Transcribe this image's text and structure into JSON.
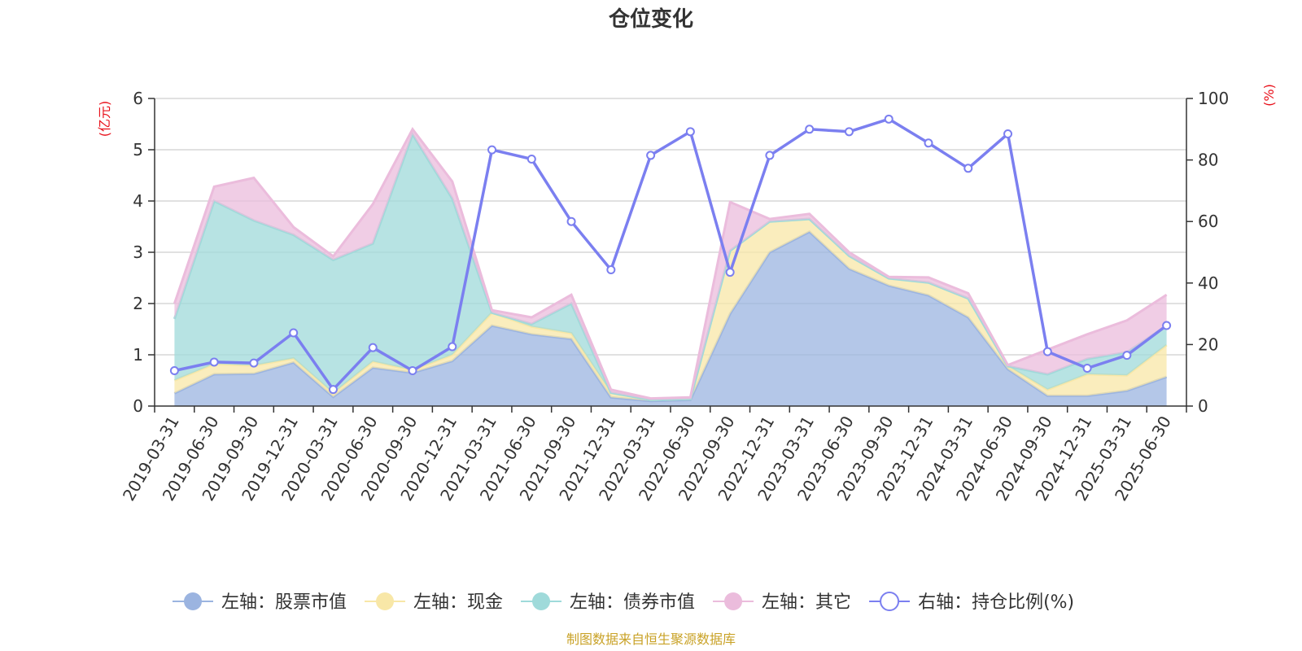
{
  "chart_data": {
    "type": "area",
    "title": "仓位变化",
    "ylabel_left": "(亿元)",
    "ylabel_right": "(%)",
    "ylim_left": [
      0,
      6
    ],
    "ylim_right": [
      0,
      100
    ],
    "yticks_left": [
      "0",
      "1",
      "2",
      "3",
      "4",
      "5",
      "6"
    ],
    "yticks_right": [
      "0",
      "20",
      "40",
      "60",
      "80",
      "100"
    ],
    "categories": [
      "2019-03-31",
      "2019-06-30",
      "2019-09-30",
      "2019-12-31",
      "2020-03-31",
      "2020-06-30",
      "2020-09-30",
      "2020-12-31",
      "2021-03-31",
      "2021-06-30",
      "2021-09-30",
      "2021-12-31",
      "2022-03-31",
      "2022-06-30",
      "2022-09-30",
      "2022-12-31",
      "2023-03-31",
      "2023-06-30",
      "2023-09-30",
      "2023-12-31",
      "2024-03-31",
      "2024-06-30",
      "2024-09-30",
      "2024-12-31",
      "2025-03-31",
      "2025-06-30"
    ],
    "series": [
      {
        "name": "左轴：股票市值",
        "axis": "left",
        "kind": "stacked-area",
        "color": "#9bb4e0",
        "values": [
          0.25,
          0.62,
          0.63,
          0.85,
          0.18,
          0.75,
          0.65,
          0.88,
          1.57,
          1.4,
          1.31,
          0.17,
          0.1,
          0.12,
          1.8,
          3.0,
          3.4,
          2.68,
          2.35,
          2.16,
          1.73,
          0.72,
          0.2,
          0.2,
          0.3,
          0.57
        ]
      },
      {
        "name": "左轴：现金",
        "axis": "left",
        "kind": "stacked-area",
        "color": "#f8e7a7",
        "values": [
          0.25,
          0.2,
          0.16,
          0.08,
          0.07,
          0.12,
          0.05,
          0.12,
          0.25,
          0.15,
          0.11,
          0.09,
          0.02,
          0.02,
          1.23,
          0.6,
          0.25,
          0.25,
          0.14,
          0.25,
          0.37,
          0.06,
          0.12,
          0.42,
          0.3,
          0.62
        ]
      },
      {
        "name": "左轴：债券市值",
        "axis": "left",
        "kind": "stacked-area",
        "color": "#9fdada",
        "values": [
          1.2,
          3.18,
          2.83,
          2.41,
          2.6,
          2.3,
          4.6,
          3.05,
          0.0,
          0.05,
          0.58,
          0.0,
          0.0,
          0.0,
          0.0,
          0.0,
          0.0,
          0.0,
          0.0,
          0.0,
          0.0,
          0.0,
          0.3,
          0.3,
          0.45,
          0.38
        ]
      },
      {
        "name": "左轴：其它",
        "axis": "left",
        "kind": "stacked-area",
        "color": "#ebbcdc",
        "values": [
          0.3,
          0.28,
          0.83,
          0.15,
          0.07,
          0.77,
          0.1,
          0.33,
          0.05,
          0.13,
          0.17,
          0.06,
          0.03,
          0.03,
          0.95,
          0.05,
          0.1,
          0.07,
          0.03,
          0.1,
          0.1,
          0.02,
          0.48,
          0.48,
          0.62,
          0.6
        ]
      },
      {
        "name": "右轴：持仓比例(%)",
        "axis": "right",
        "kind": "line",
        "color": "#7b7ff0",
        "values": [
          11.5,
          14.3,
          14.0,
          23.8,
          5.4,
          19.0,
          11.5,
          19.3,
          83.3,
          80.3,
          60.0,
          44.3,
          81.5,
          89.2,
          43.5,
          81.5,
          90.0,
          89.2,
          93.3,
          85.5,
          77.3,
          88.5,
          17.7,
          12.3,
          16.5,
          26.2
        ]
      }
    ],
    "legend_position": "bottom-center",
    "grid": true
  },
  "source_note": "制图数据来自恒生聚源数据库"
}
